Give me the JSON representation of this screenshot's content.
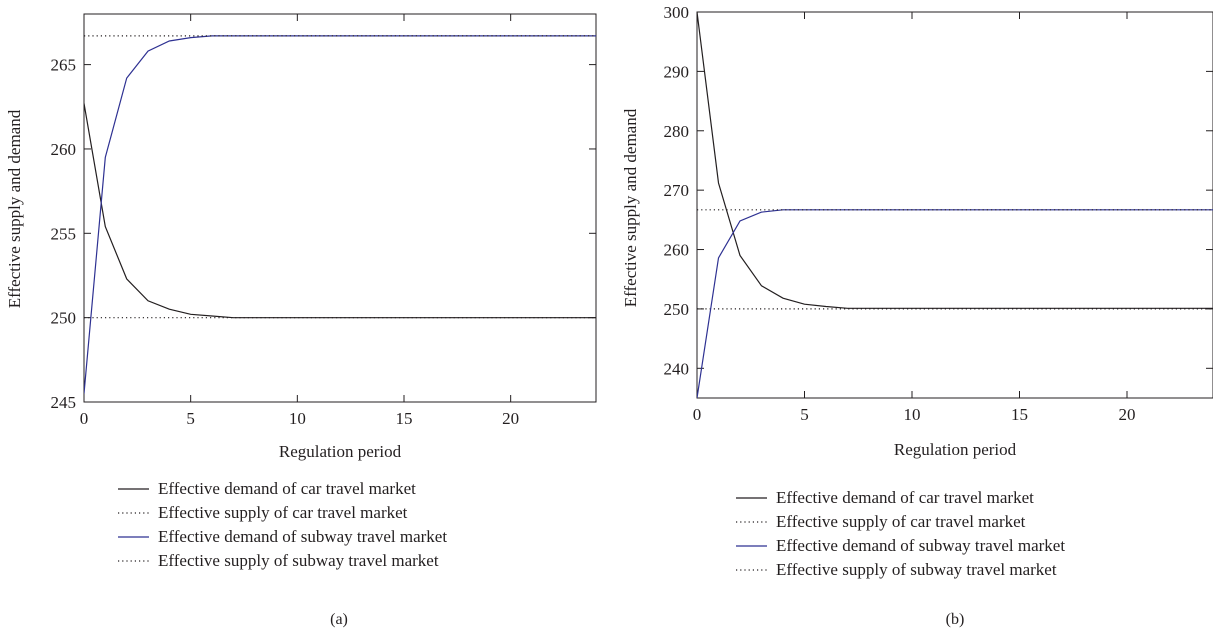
{
  "chart_data": [
    {
      "type": "line",
      "caption": "(a)",
      "xlabel": "Regulation period",
      "ylabel": "Effective supply and demand",
      "xlim": [
        0,
        24
      ],
      "ylim": [
        245,
        268
      ],
      "xticks": [
        0,
        5,
        10,
        15,
        20
      ],
      "yticks": [
        245,
        250,
        255,
        260,
        265
      ],
      "grid": false,
      "legend_position": "below",
      "series": [
        {
          "name": "Effective demand of car travel market",
          "color": "#231f20",
          "dash": "solid",
          "x": [
            0,
            1,
            2,
            3,
            4,
            5,
            6,
            7,
            8,
            24
          ],
          "y": [
            262.7,
            255.4,
            252.3,
            251.0,
            250.5,
            250.2,
            250.1,
            250.0,
            250.0,
            250.0
          ]
        },
        {
          "name": "Effective supply of car travel market",
          "color": "#231f20",
          "dash": "dotted",
          "x": [
            0,
            24
          ],
          "y": [
            250.0,
            250.0
          ]
        },
        {
          "name": "Effective demand of subway travel market",
          "color": "#2e3192",
          "dash": "solid",
          "x": [
            0,
            1,
            2,
            3,
            4,
            5,
            6,
            7,
            24
          ],
          "y": [
            245.5,
            259.5,
            264.2,
            265.8,
            266.4,
            266.6,
            266.7,
            266.7,
            266.7
          ]
        },
        {
          "name": "Effective supply of subway travel market",
          "color": "#231f20",
          "dash": "dotted",
          "x": [
            0,
            24
          ],
          "y": [
            266.7,
            266.7
          ]
        }
      ]
    },
    {
      "type": "line",
      "caption": "(b)",
      "xlabel": "Regulation period",
      "ylabel": "Effective supply and demand",
      "xlim": [
        0,
        24
      ],
      "ylim": [
        235,
        300
      ],
      "xticks": [
        0,
        5,
        10,
        15,
        20
      ],
      "yticks": [
        240,
        250,
        260,
        270,
        280,
        290,
        300
      ],
      "grid": false,
      "legend_position": "below",
      "series": [
        {
          "name": "Effective demand of car travel market",
          "color": "#231f20",
          "dash": "solid",
          "x": [
            0,
            1,
            2,
            3,
            4,
            5,
            6,
            7,
            8,
            24
          ],
          "y": [
            300.0,
            271.2,
            259.0,
            253.9,
            251.8,
            250.8,
            250.4,
            250.1,
            250.1,
            250.1
          ]
        },
        {
          "name": "Effective supply of car travel market",
          "color": "#231f20",
          "dash": "dotted",
          "x": [
            0,
            24
          ],
          "y": [
            250.0,
            250.0
          ]
        },
        {
          "name": "Effective demand of subway travel market",
          "color": "#2e3192",
          "dash": "solid",
          "x": [
            0,
            1,
            2,
            3,
            4,
            5,
            6,
            7,
            24
          ],
          "y": [
            235.0,
            258.6,
            264.8,
            266.3,
            266.7,
            266.7,
            266.7,
            266.7,
            266.7
          ]
        },
        {
          "name": "Effective supply of subway travel market",
          "color": "#231f20",
          "dash": "dotted",
          "x": [
            0,
            24
          ],
          "y": [
            266.7,
            266.7
          ]
        }
      ]
    }
  ]
}
